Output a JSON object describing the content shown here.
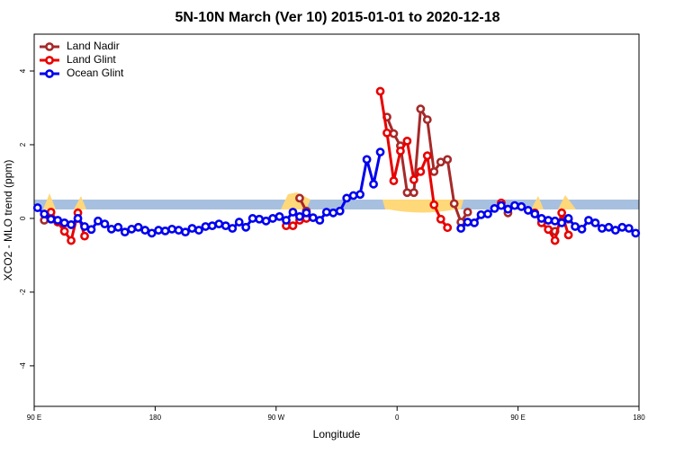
{
  "chart_data": {
    "type": "line",
    "title": "5N-10N March (Ver 10)   2015-01-01 to 2020-12-18",
    "x_label": "Longitude",
    "y_label": "XCO2 - MLO trend (ppm)",
    "x": [
      92.5,
      97.5,
      102.5,
      107.5,
      112.5,
      117.5,
      122.5,
      127.5,
      132.5,
      137.5,
      142.5,
      147.5,
      152.5,
      157.5,
      162.5,
      167.5,
      172.5,
      177.5,
      182.5,
      187.5,
      192.5,
      197.5,
      202.5,
      207.5,
      212.5,
      217.5,
      222.5,
      227.5,
      232.5,
      237.5,
      242.5,
      247.5,
      252.5,
      257.5,
      262.5,
      267.5,
      272.5,
      277.5,
      282.5,
      287.5,
      292.5,
      297.5,
      302.5,
      307.5,
      312.5,
      317.5,
      322.5,
      327.5,
      332.5,
      337.5,
      342.5,
      347.5,
      352.5,
      357.5,
      362.5,
      367.5,
      372.5,
      377.5,
      382.5,
      387.5,
      392.5,
      397.5,
      402.5,
      407.5,
      412.5,
      417.5,
      422.5,
      427.5,
      432.5,
      437.5,
      442.5,
      447.5,
      452.5,
      457.5,
      462.5,
      467.5,
      472.5,
      477.5,
      482.5,
      487.5,
      492.5,
      497.5,
      502.5,
      507.5,
      512.5,
      517.5,
      522.5,
      527.5,
      532.5,
      537.5
    ],
    "series": [
      {
        "name": "Land Nadir",
        "color": "#a52a2a",
        "values": [
          null,
          -0.05,
          null,
          null,
          null,
          null,
          null,
          null,
          null,
          null,
          null,
          null,
          null,
          null,
          null,
          null,
          null,
          null,
          null,
          null,
          null,
          null,
          null,
          null,
          null,
          null,
          null,
          null,
          null,
          null,
          null,
          null,
          null,
          null,
          null,
          null,
          null,
          null,
          null,
          0.55,
          0.2,
          null,
          null,
          null,
          null,
          null,
          null,
          null,
          null,
          null,
          null,
          null,
          2.75,
          2.3,
          1.97,
          0.7,
          0.7,
          2.97,
          2.68,
          1.27,
          1.53,
          1.6,
          0.4,
          -0.1,
          0.17,
          null,
          null,
          null,
          null,
          null,
          0.15,
          null,
          null,
          null,
          null,
          null,
          null,
          -0.35,
          null,
          -0.02,
          null,
          null,
          null,
          null,
          null,
          null,
          null,
          null,
          null,
          null
        ]
      },
      {
        "name": "Land Glint",
        "color": "#e80000",
        "values": [
          null,
          null,
          0.17,
          -0.1,
          -0.35,
          -0.6,
          0.15,
          -0.48,
          null,
          null,
          null,
          null,
          null,
          null,
          null,
          null,
          null,
          null,
          null,
          null,
          null,
          null,
          null,
          null,
          null,
          null,
          null,
          null,
          null,
          null,
          null,
          null,
          null,
          null,
          null,
          null,
          null,
          -0.2,
          -0.2,
          -0.05,
          0,
          null,
          null,
          null,
          null,
          null,
          null,
          null,
          null,
          null,
          null,
          3.45,
          2.32,
          1.02,
          1.83,
          2.1,
          1.05,
          1.27,
          1.7,
          0.37,
          -0.02,
          -0.25,
          null,
          null,
          null,
          null,
          null,
          null,
          null,
          0.42,
          null,
          null,
          null,
          null,
          0.15,
          -0.12,
          -0.3,
          -0.6,
          0.15,
          -0.45,
          null,
          null,
          null,
          null,
          null,
          null,
          null,
          null,
          null,
          null
        ]
      },
      {
        "name": "Ocean Glint",
        "color": "#0000ee",
        "values": [
          0.29,
          0.12,
          -0.02,
          -0.05,
          -0.12,
          -0.17,
          0,
          -0.22,
          -0.3,
          -0.07,
          -0.15,
          -0.29,
          -0.24,
          -0.37,
          -0.29,
          -0.24,
          -0.32,
          -0.4,
          -0.32,
          -0.34,
          -0.29,
          -0.32,
          -0.37,
          -0.27,
          -0.32,
          -0.22,
          -0.2,
          -0.15,
          -0.2,
          -0.27,
          -0.1,
          -0.24,
          0,
          -0.02,
          -0.07,
          0,
          0.05,
          -0.05,
          0.17,
          0.05,
          0.15,
          0.02,
          -0.05,
          0.17,
          0.15,
          0.2,
          0.55,
          0.62,
          0.65,
          1.6,
          0.93,
          1.8,
          null,
          null,
          null,
          null,
          null,
          null,
          null,
          null,
          null,
          null,
          null,
          -0.27,
          -0.1,
          -0.12,
          0.1,
          0.12,
          0.27,
          0.35,
          0.25,
          0.35,
          0.32,
          0.22,
          0.12,
          0,
          -0.05,
          -0.07,
          -0.12,
          0,
          -0.22,
          -0.29,
          -0.05,
          -0.12,
          -0.27,
          -0.24,
          -0.32,
          -0.24,
          -0.27,
          -0.4
        ]
      }
    ],
    "xlim": [
      90,
      540
    ],
    "xticks": [
      {
        "value": 90,
        "label": "90 E"
      },
      180,
      {
        "value": 270,
        "label": "90 W"
      },
      {
        "value": 360,
        "label": "0"
      },
      {
        "value": 450,
        "label": "90 E"
      },
      {
        "value": 540,
        "label": "180"
      }
    ],
    "ylim": [
      -5.1,
      5.0
    ],
    "yticks": [
      -4,
      -2,
      0,
      2,
      4
    ],
    "legend": "top-left"
  }
}
